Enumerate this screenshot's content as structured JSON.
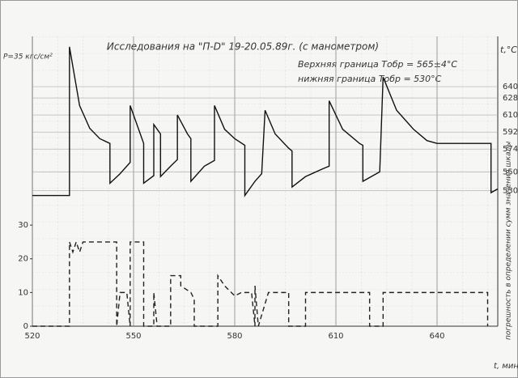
{
  "chart_data": {
    "type": "line",
    "title": "Исследования на \"П-D\" 19-20.05.89г. (с манометром)",
    "annotations": [
      "Верхняя граница Тобр = 565±4°С",
      "нижняя граница Тобр = 530°С"
    ],
    "y_label": "Р=35 кгс/см²",
    "y2_label": "t,°С",
    "x_label": "t, мин",
    "side_note": "погрешность в определении сумм значения шкалы",
    "xlim": [
      520,
      658
    ],
    "xticks": [
      520,
      550,
      580,
      610,
      640
    ],
    "ylim": [
      0,
      86
    ],
    "yticks": [
      0,
      10,
      20,
      30
    ],
    "y2lim": [
      387,
      693
    ],
    "y2ticks": [
      530,
      550,
      574,
      592,
      610,
      628,
      640
    ],
    "grid": true,
    "series": [
      {
        "name": "t",
        "color": "#111111",
        "axis": "y2",
        "x": [
          520,
          531,
          531,
          534,
          537,
          540,
          543,
          543,
          546,
          549,
          549,
          552,
          553,
          553,
          556,
          556,
          558,
          558,
          561,
          563,
          563,
          566,
          567,
          567,
          571,
          574,
          574,
          577,
          580,
          583,
          583,
          586,
          588,
          589,
          592,
          596,
          597,
          597,
          601,
          606,
          608,
          608,
          612,
          617,
          618,
          618,
          622,
          623,
          624,
          628,
          633,
          637,
          640,
          650,
          656,
          656,
          658
        ],
        "values": [
          525,
          525,
          682,
          620,
          596,
          585,
          580,
          538,
          548,
          560,
          620,
          590,
          580,
          538,
          546,
          600,
          590,
          545,
          556,
          563,
          610,
          590,
          585,
          540,
          556,
          562,
          620,
          595,
          585,
          578,
          525,
          540,
          548,
          615,
          590,
          575,
          572,
          534,
          545,
          553,
          556,
          625,
          595,
          580,
          578,
          540,
          548,
          550,
          650,
          615,
          595,
          583,
          580,
          580,
          580,
          528,
          532
        ]
      },
      {
        "name": "P",
        "color": "#222222",
        "axis": "y",
        "x": [
          520,
          531,
          531,
          532,
          533,
          534,
          535,
          545,
          545,
          546,
          548,
          549,
          549,
          553,
          553,
          556,
          556,
          557,
          561,
          561,
          564,
          564,
          567,
          568,
          568,
          575,
          575,
          577,
          580,
          582,
          585,
          586,
          586,
          587,
          590,
          596,
          596,
          601,
          601,
          620,
          620,
          624,
          624,
          655,
          655
        ],
        "values": [
          0,
          0,
          25,
          22,
          25,
          22,
          25,
          25,
          0,
          10,
          10,
          0,
          25,
          25,
          0,
          0,
          10,
          0,
          0,
          15,
          15,
          12,
          10,
          8,
          0,
          0,
          15,
          12,
          9,
          10,
          10,
          0,
          12,
          0,
          10,
          10,
          0,
          0,
          10,
          10,
          0,
          0,
          10,
          10,
          0
        ]
      }
    ]
  }
}
